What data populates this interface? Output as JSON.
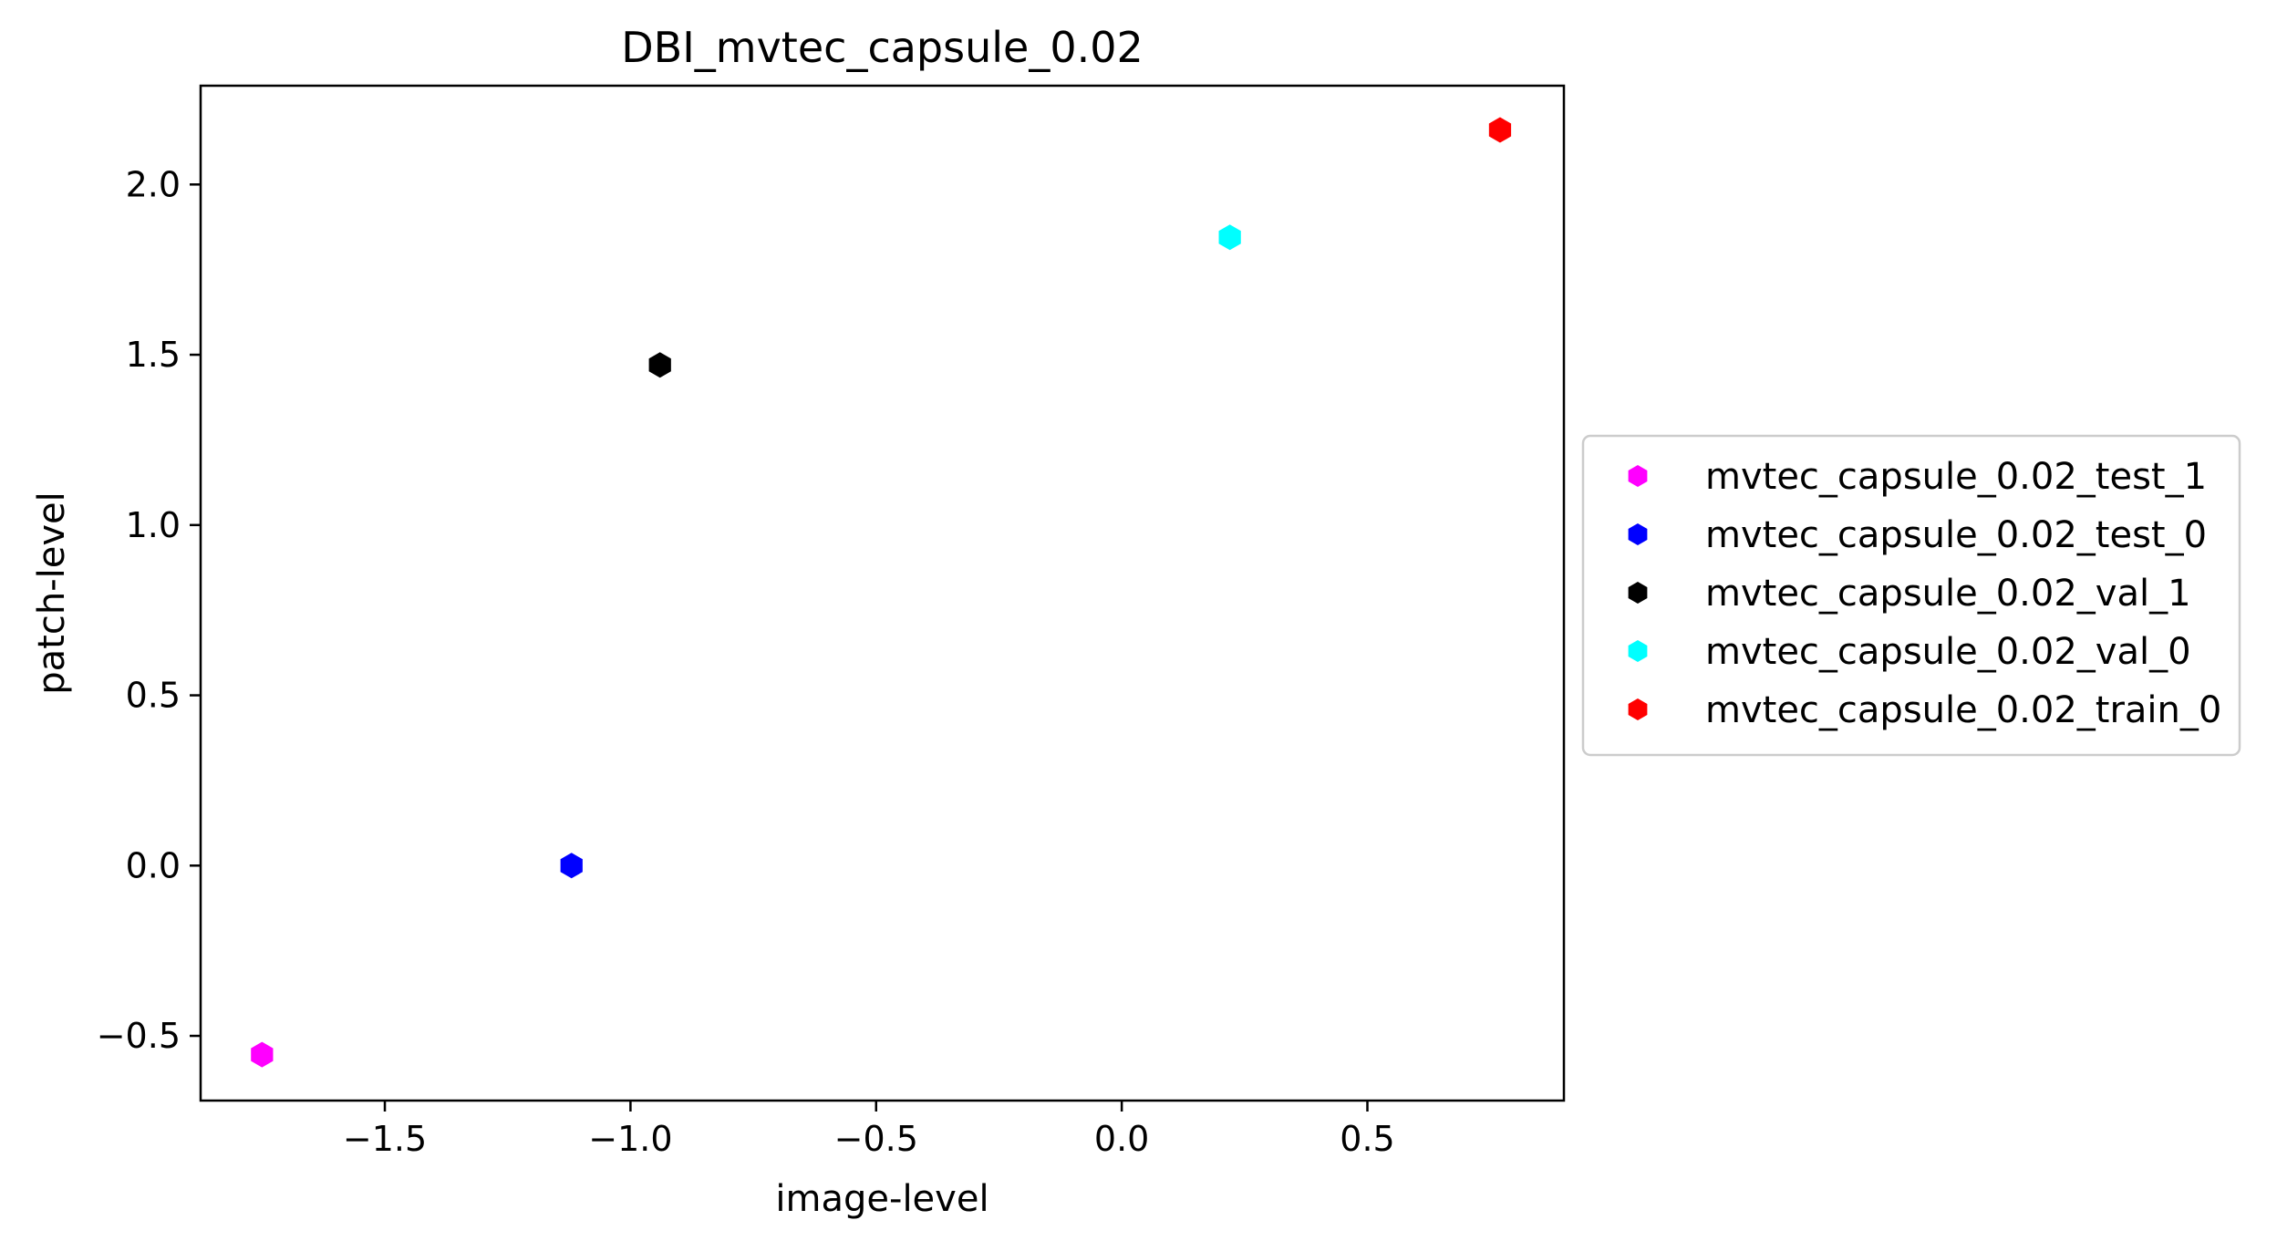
{
  "chart_data": {
    "type": "scatter",
    "title": "DBI_mvtec_capsule_0.02",
    "xlabel": "image-level",
    "ylabel": "patch-level",
    "xlim": [
      -1.875,
      0.9
    ],
    "ylim": [
      -0.69,
      2.29
    ],
    "xticks": [
      -1.5,
      -1.0,
      -0.5,
      0.0,
      0.5
    ],
    "xtick_labels": [
      "−1.5",
      "−1.0",
      "−0.5",
      "0.0",
      "0.5"
    ],
    "yticks": [
      -0.5,
      0.0,
      0.5,
      1.0,
      1.5,
      2.0
    ],
    "ytick_labels": [
      "−0.5",
      "0.0",
      "0.5",
      "1.0",
      "1.5",
      "2.0"
    ],
    "grid": false,
    "legend_position": "outside-right",
    "marker": "hexagon",
    "series": [
      {
        "name": "mvtec_capsule_0.02_test_1",
        "color": "#ff00ff",
        "x": -1.75,
        "y": -0.555
      },
      {
        "name": "mvtec_capsule_0.02_test_0",
        "color": "#0000ff",
        "x": -1.12,
        "y": 0.0
      },
      {
        "name": "mvtec_capsule_0.02_val_1",
        "color": "#000000",
        "x": -0.94,
        "y": 1.47
      },
      {
        "name": "mvtec_capsule_0.02_val_0",
        "color": "#00ffff",
        "x": 0.22,
        "y": 1.845
      },
      {
        "name": "mvtec_capsule_0.02_train_0",
        "color": "#ff0000",
        "x": 0.77,
        "y": 2.16
      }
    ]
  }
}
